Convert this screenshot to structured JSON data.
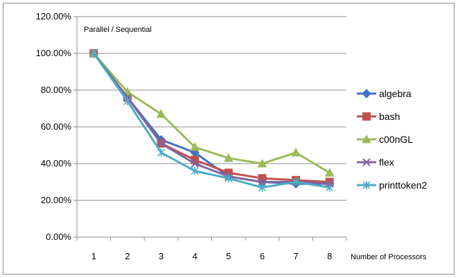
{
  "chart_data": {
    "type": "line",
    "title": "",
    "annotation": "Parallel / Sequential",
    "xlabel": "Number of Processors",
    "ylabel": "",
    "categories": [
      "1",
      "2",
      "3",
      "4",
      "5",
      "6",
      "7",
      "8"
    ],
    "ylim": [
      0,
      120
    ],
    "yticks": [
      "0.00%",
      "20.00%",
      "40.00%",
      "60.00%",
      "80.00%",
      "100.00%",
      "120.00%"
    ],
    "grid": "horizontal",
    "legend_position": "right",
    "series": [
      {
        "name": "algebra",
        "color": "#4472C4",
        "marker": "diamond",
        "values": [
          100,
          76,
          53,
          46,
          33,
          30,
          29,
          29
        ]
      },
      {
        "name": "bash",
        "color": "#C0504D",
        "marker": "square",
        "values": [
          100,
          76,
          51,
          42,
          35,
          32,
          31,
          30
        ]
      },
      {
        "name": "c00nGL",
        "color": "#9BBB59",
        "marker": "triangle",
        "values": [
          100,
          79,
          67,
          49,
          43,
          40,
          46,
          35
        ]
      },
      {
        "name": "flex",
        "color": "#8064A2",
        "marker": "x",
        "values": [
          100,
          76,
          51,
          40,
          33,
          30,
          30,
          29
        ]
      },
      {
        "name": "printtoken2",
        "color": "#4BACC6",
        "marker": "asterisk",
        "values": [
          100,
          74,
          46,
          36,
          32,
          27,
          30,
          27
        ]
      }
    ]
  }
}
